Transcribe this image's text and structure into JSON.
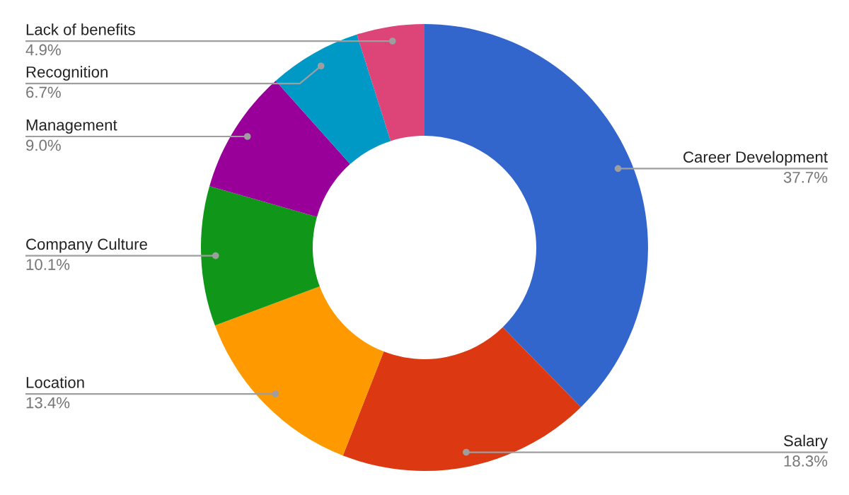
{
  "chart_data": {
    "type": "donut",
    "categories": [
      "Career Development",
      "Salary",
      "Location",
      "Company Culture",
      "Management",
      "Recognition",
      "Lack of benefits"
    ],
    "values": [
      37.7,
      18.3,
      13.4,
      10.1,
      9.0,
      6.7,
      4.9
    ],
    "colors": [
      "#3366cc",
      "#dc3912",
      "#ff9900",
      "#109618",
      "#990099",
      "#0099c6",
      "#dd4477"
    ],
    "value_labels": [
      "37.7%",
      "18.3%",
      "13.4%",
      "10.1%",
      "9.0%",
      "6.7%",
      "4.9%"
    ],
    "legend": false
  }
}
